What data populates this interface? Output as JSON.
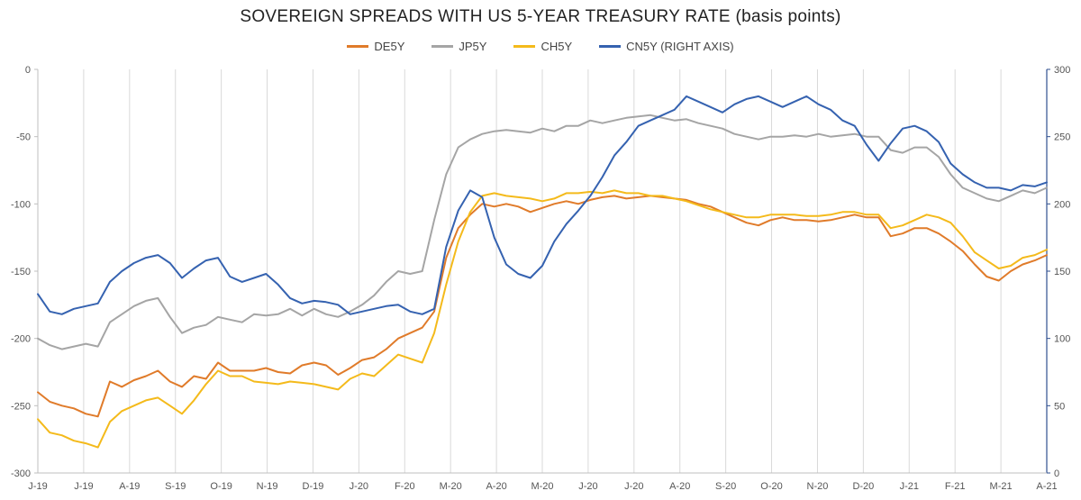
{
  "chart_data": {
    "type": "line",
    "title": "SOVEREIGN SPREADS WITH US 5-YEAR TREASURY RATE (basis points)",
    "x_ticks": [
      "J-19",
      "J-19",
      "A-19",
      "S-19",
      "O-19",
      "N-19",
      "D-19",
      "J-20",
      "F-20",
      "M-20",
      "A-20",
      "M-20",
      "J-20",
      "J-20",
      "A-20",
      "S-20",
      "O-20",
      "N-20",
      "D-20",
      "J-21",
      "F-21",
      "M-21",
      "A-21"
    ],
    "y_left": {
      "min": -300,
      "max": 0,
      "step": 50,
      "ticks": [
        "0",
        "-50",
        "-100",
        "-150",
        "-200",
        "-250",
        "-300"
      ]
    },
    "y_right": {
      "min": 0,
      "max": 300,
      "step": 50,
      "ticks": [
        "300",
        "250",
        "200",
        "150",
        "100",
        "50",
        "0"
      ]
    },
    "grid": "vertical",
    "legend_position": "top",
    "series": [
      {
        "name": "DE5Y",
        "axis": "left",
        "color": "#E07B2A",
        "values": [
          -240,
          -247,
          -250,
          -252,
          -256,
          -258,
          -232,
          -236,
          -231,
          -228,
          -224,
          -232,
          -236,
          -228,
          -230,
          -218,
          -224,
          -224,
          -224,
          -222,
          -225,
          -226,
          -220,
          -218,
          -220,
          -227,
          -222,
          -216,
          -214,
          -208,
          -200,
          -196,
          -192,
          -180,
          -140,
          -118,
          -108,
          -100,
          -102,
          -100,
          -102,
          -106,
          -103,
          -100,
          -98,
          -100,
          -97,
          -95,
          -94,
          -96,
          -95,
          -94,
          -95,
          -96,
          -97,
          -100,
          -102,
          -106,
          -110,
          -114,
          -116,
          -112,
          -110,
          -112,
          -112,
          -113,
          -112,
          -110,
          -108,
          -110,
          -110,
          -124,
          -122,
          -118,
          -118,
          -122,
          -128,
          -135,
          -145,
          -154,
          -157,
          -150,
          -145,
          -142,
          -138
        ]
      },
      {
        "name": "JP5Y",
        "axis": "left",
        "color": "#A5A5A5",
        "values": [
          -200,
          -205,
          -208,
          -206,
          -204,
          -206,
          -188,
          -182,
          -176,
          -172,
          -170,
          -184,
          -196,
          -192,
          -190,
          -184,
          -186,
          -188,
          -182,
          -183,
          -182,
          -178,
          -183,
          -178,
          -182,
          -184,
          -180,
          -175,
          -168,
          -158,
          -150,
          -152,
          -150,
          -112,
          -78,
          -58,
          -52,
          -48,
          -46,
          -45,
          -46,
          -47,
          -44,
          -46,
          -42,
          -42,
          -38,
          -40,
          -38,
          -36,
          -35,
          -34,
          -36,
          -38,
          -37,
          -40,
          -42,
          -44,
          -48,
          -50,
          -52,
          -50,
          -50,
          -49,
          -50,
          -48,
          -50,
          -49,
          -48,
          -50,
          -50,
          -60,
          -62,
          -58,
          -58,
          -65,
          -78,
          -88,
          -92,
          -96,
          -98,
          -94,
          -90,
          -92,
          -88
        ]
      },
      {
        "name": "CH5Y",
        "axis": "left",
        "color": "#F4BA1B",
        "values": [
          -260,
          -270,
          -272,
          -276,
          -278,
          -281,
          -262,
          -254,
          -250,
          -246,
          -244,
          -250,
          -256,
          -246,
          -234,
          -224,
          -228,
          -228,
          -232,
          -233,
          -234,
          -232,
          -233,
          -234,
          -236,
          -238,
          -230,
          -226,
          -228,
          -220,
          -212,
          -215,
          -218,
          -196,
          -160,
          -128,
          -106,
          -94,
          -92,
          -94,
          -95,
          -96,
          -98,
          -96,
          -92,
          -92,
          -91,
          -92,
          -90,
          -92,
          -92,
          -94,
          -94,
          -96,
          -98,
          -101,
          -104,
          -106,
          -108,
          -110,
          -110,
          -108,
          -108,
          -108,
          -109,
          -109,
          -108,
          -106,
          -106,
          -108,
          -108,
          -118,
          -116,
          -112,
          -108,
          -110,
          -114,
          -124,
          -136,
          -142,
          -148,
          -146,
          -140,
          -138,
          -134
        ]
      },
      {
        "name": "CN5Y (RIGHT AXIS)",
        "axis": "right",
        "color": "#3562B0",
        "values": [
          133,
          120,
          118,
          122,
          124,
          126,
          142,
          150,
          156,
          160,
          162,
          156,
          145,
          152,
          158,
          160,
          146,
          142,
          145,
          148,
          140,
          130,
          126,
          128,
          127,
          125,
          118,
          120,
          122,
          124,
          125,
          120,
          118,
          122,
          168,
          195,
          210,
          205,
          175,
          155,
          148,
          145,
          154,
          172,
          185,
          195,
          206,
          220,
          236,
          246,
          258,
          262,
          266,
          270,
          280,
          276,
          272,
          268,
          274,
          278,
          280,
          276,
          272,
          276,
          280,
          274,
          270,
          262,
          258,
          244,
          232,
          245,
          256,
          258,
          254,
          246,
          230,
          222,
          216,
          212,
          212,
          210,
          214,
          213,
          216
        ]
      }
    ]
  }
}
